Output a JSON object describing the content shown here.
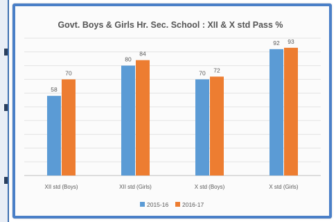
{
  "chart_data": {
    "type": "bar",
    "title": "Govt. Boys & Girls Hr. Sec. School : XII & X std Pass %",
    "categories": [
      "XII std (Boys)",
      "XII std (Girls)",
      "X std (Boys)",
      "X std (Girls)"
    ],
    "series": [
      {
        "name": "2015-16",
        "values": [
          58,
          80,
          70,
          92
        ],
        "color": "#5b9bd5"
      },
      {
        "name": "2016-17",
        "values": [
          70,
          84,
          72,
          93
        ],
        "color": "#ed7d31"
      }
    ],
    "ylim": [
      0,
      100
    ],
    "grid": true,
    "legend": "bottom",
    "xlabel": "",
    "ylabel": ""
  }
}
